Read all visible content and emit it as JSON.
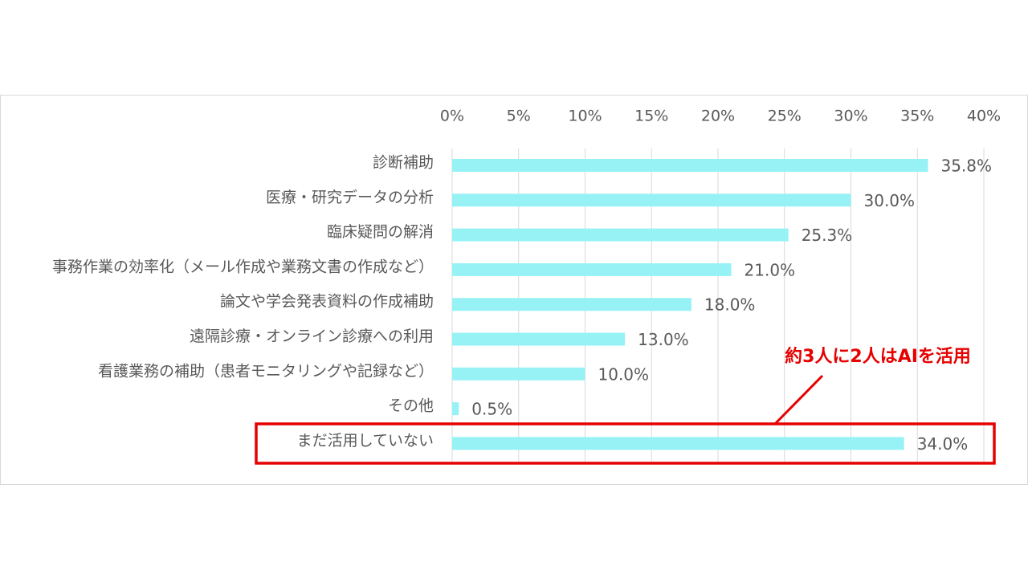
{
  "chart_data": {
    "type": "bar",
    "orientation": "horizontal",
    "categories": [
      "診断補助",
      "医療・研究データの分析",
      "臨床疑問の解消",
      "事務作業の効率化（メール作成や業務文書の作成など）",
      "論文や学会発表資料の作成補助",
      "遠隔診療・オンライン診療への利用",
      "看護業務の補助（患者モニタリングや記録など）",
      "その他",
      "まだ活用していない"
    ],
    "values": [
      35.8,
      30.0,
      25.3,
      21.0,
      18.0,
      13.0,
      10.0,
      0.5,
      34.0
    ],
    "value_labels": [
      "35.8%",
      "30.0%",
      "25.3%",
      "21.0%",
      "18.0%",
      "13.0%",
      "10.0%",
      "0.5%",
      "34.0%"
    ],
    "color": "#97f2f6",
    "xlim": [
      0,
      40
    ],
    "xticks": [
      {
        "value": 0,
        "label": "0%"
      },
      {
        "value": 5,
        "label": "5%"
      },
      {
        "value": 10,
        "label": "10%"
      },
      {
        "value": 15,
        "label": "15%"
      },
      {
        "value": 20,
        "label": "20%"
      },
      {
        "value": 25,
        "label": "25%"
      },
      {
        "value": 30,
        "label": "30%"
      },
      {
        "value": 35,
        "label": "35%"
      },
      {
        "value": 40,
        "label": "40%"
      }
    ],
    "grid": true,
    "annotation": "約3人に2人はAIを活用"
  }
}
